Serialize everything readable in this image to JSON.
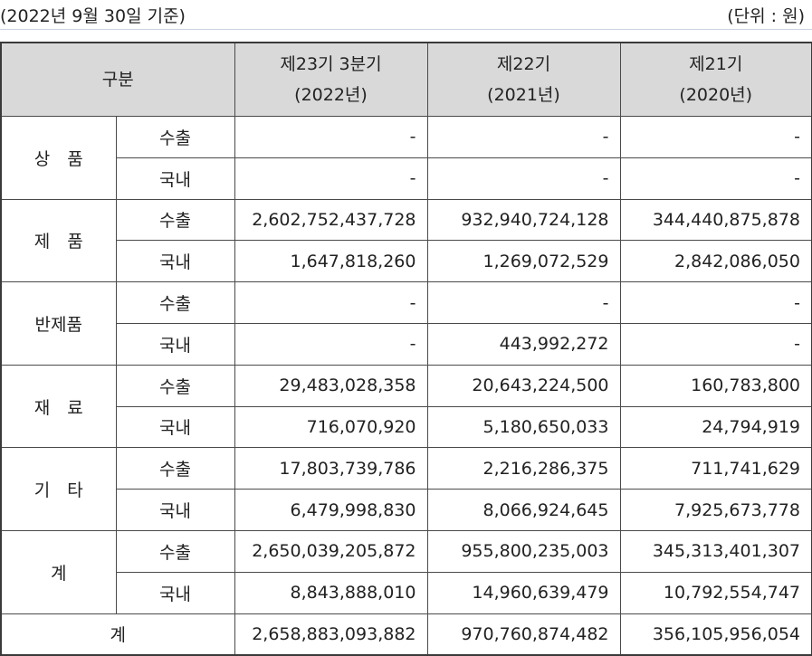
{
  "caption": {
    "date": "(2022년 9월 30일 기준)",
    "unit": "(단위 : 원)"
  },
  "header": {
    "category": "구분",
    "periods": [
      {
        "name": "제23기 3분기",
        "year": "(2022년)"
      },
      {
        "name": "제22기",
        "year": "(2021년)"
      },
      {
        "name": "제21기",
        "year": "(2020년)"
      }
    ]
  },
  "groups": [
    {
      "label": "상　품",
      "rows": [
        {
          "sub": "수출",
          "v": [
            "-",
            "-",
            "-"
          ]
        },
        {
          "sub": "국내",
          "v": [
            "-",
            "-",
            "-"
          ]
        }
      ]
    },
    {
      "label": "제　품",
      "rows": [
        {
          "sub": "수출",
          "v": [
            "2,602,752,437,728",
            "932,940,724,128",
            "344,440,875,878"
          ]
        },
        {
          "sub": "국내",
          "v": [
            "1,647,818,260",
            "1,269,072,529",
            "2,842,086,050"
          ]
        }
      ]
    },
    {
      "label": "반제품",
      "rows": [
        {
          "sub": "수출",
          "v": [
            "-",
            "-",
            "-"
          ]
        },
        {
          "sub": "국내",
          "v": [
            "-",
            "443,992,272",
            "-"
          ]
        }
      ]
    },
    {
      "label": "재　료",
      "rows": [
        {
          "sub": "수출",
          "v": [
            "29,483,028,358",
            "20,643,224,500",
            "160,783,800"
          ]
        },
        {
          "sub": "국내",
          "v": [
            "716,070,920",
            "5,180,650,033",
            "24,794,919"
          ]
        }
      ]
    },
    {
      "label": "기　타",
      "rows": [
        {
          "sub": "수출",
          "v": [
            "17,803,739,786",
            "2,216,286,375",
            "711,741,629"
          ]
        },
        {
          "sub": "국내",
          "v": [
            "6,479,998,830",
            "8,066,924,645",
            "7,925,673,778"
          ]
        }
      ]
    },
    {
      "label": "계",
      "rows": [
        {
          "sub": "수출",
          "v": [
            "2,650,039,205,872",
            "955,800,235,003",
            "345,313,401,307"
          ]
        },
        {
          "sub": "국내",
          "v": [
            "8,843,888,010",
            "14,960,639,479",
            "10,792,554,747"
          ]
        }
      ]
    }
  ],
  "total": {
    "label": "계",
    "v": [
      "2,658,883,093,882",
      "970,760,874,482",
      "356,105,956,054"
    ]
  }
}
